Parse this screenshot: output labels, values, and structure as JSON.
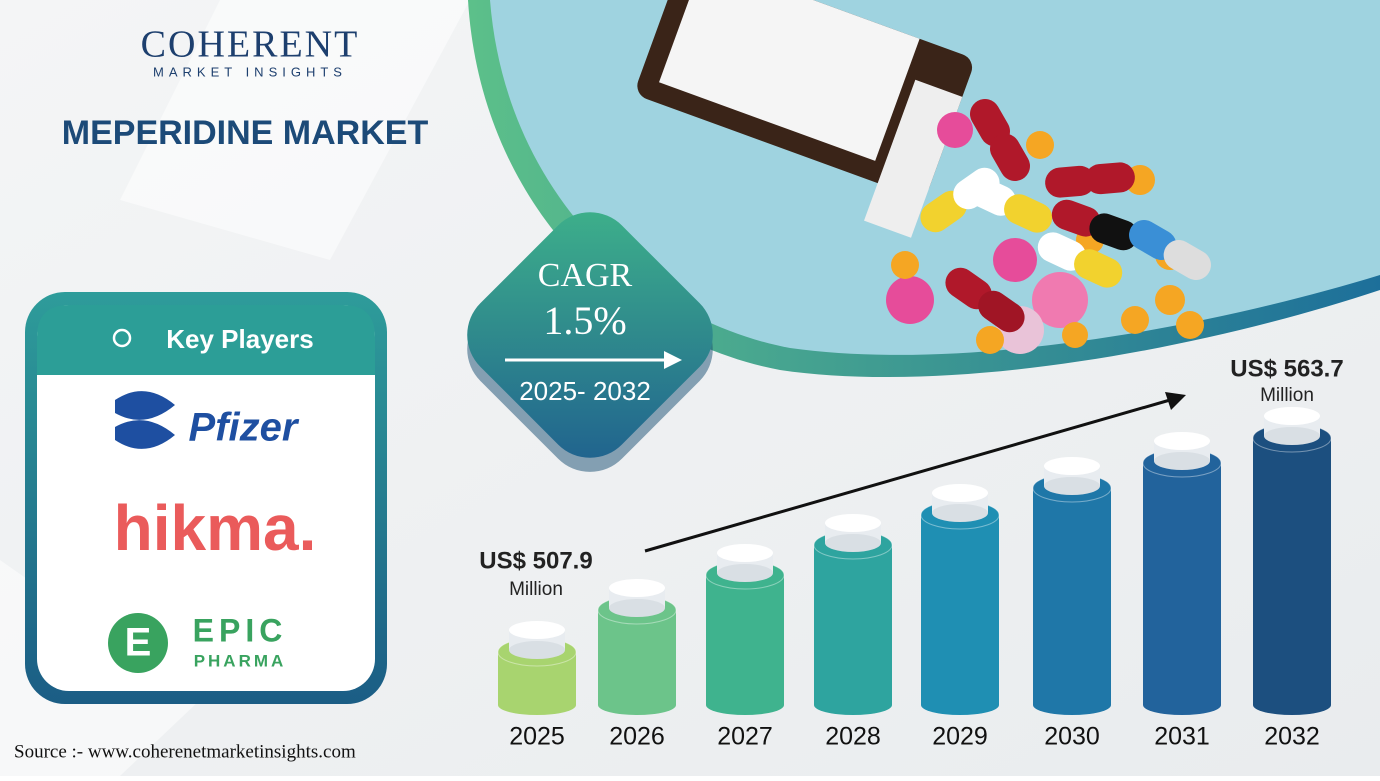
{
  "brand": {
    "name": "COHERENT",
    "tagline": "MARKET INSIGHTS"
  },
  "title": "MEPERIDINE MARKET",
  "key_players": {
    "heading": "Key Players",
    "companies": [
      {
        "name": "Pfizer"
      },
      {
        "name": "hikma."
      },
      {
        "name": "EPIC",
        "sub": "PHARMA"
      }
    ]
  },
  "cagr": {
    "label": "CAGR",
    "value": "1.5%",
    "period": "2025- 2032"
  },
  "start": {
    "value": "US$ 507.9",
    "unit": "Million"
  },
  "end": {
    "value": "US$ 563.7",
    "unit": "Million"
  },
  "years": [
    "2025",
    "2026",
    "2027",
    "2028",
    "2029",
    "2030",
    "2031",
    "2032"
  ],
  "source": "Source :- www.coherenetmarketinsights.com"
}
